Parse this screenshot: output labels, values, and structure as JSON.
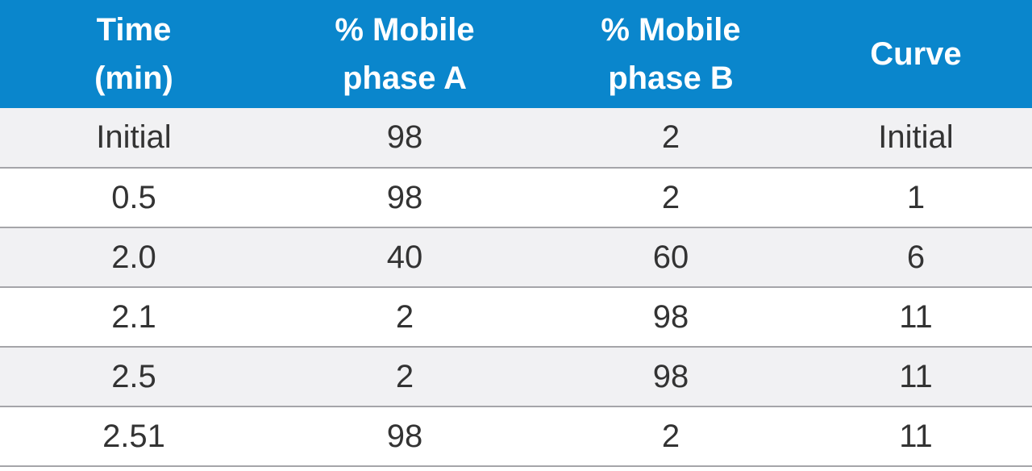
{
  "table": {
    "headers": [
      [
        "Time",
        "(min)"
      ],
      [
        "% Mobile",
        "phase A"
      ],
      [
        "% Mobile",
        "phase B"
      ],
      [
        "Curve"
      ]
    ],
    "rows": [
      [
        "Initial",
        "98",
        "2",
        "Initial"
      ],
      [
        "0.5",
        "98",
        "2",
        "1"
      ],
      [
        "2.0",
        "40",
        "60",
        "6"
      ],
      [
        "2.1",
        "2",
        "98",
        "11"
      ],
      [
        "2.5",
        "2",
        "98",
        "11"
      ],
      [
        "2.51",
        "98",
        "2",
        "11"
      ]
    ]
  },
  "colors": {
    "header_background": "#0a86cc",
    "header_text": "#ffffff",
    "row_shaded": "#f1f1f3",
    "row_plain": "#ffffff",
    "cell_text": "#333333",
    "row_divider": "#a5a5a9"
  }
}
